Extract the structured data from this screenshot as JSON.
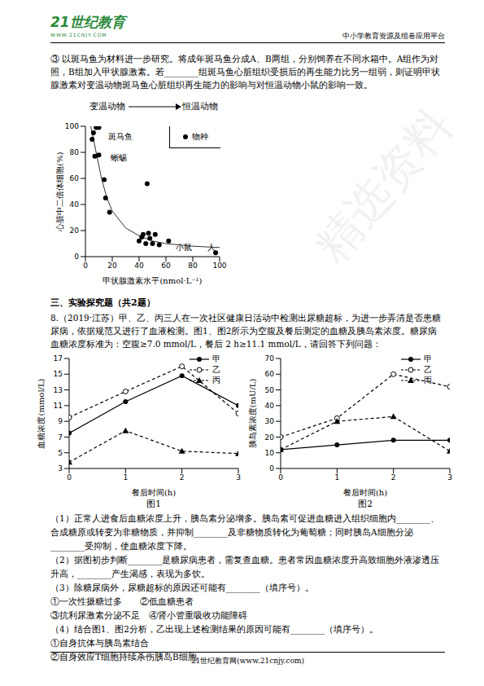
{
  "header": {
    "logo": "21世纪教育",
    "logo_url": "WWW.21CNJY.COM",
    "platform": "中小学教育资源及组卷应用平台"
  },
  "watermark": "精选资料",
  "intro": "③ 以斑马鱼为材料进一步研究。将成年斑马鱼分成A、B两组，分别饲养在不同水箱中。A组作为对照，B组加入甲状腺激素。若________组斑马鱼心脏组织受损后的再生能力比另一组弱，则证明甲状腺激素对变温动物斑马鱼心脏组织再生能力的影响与对恒温动物小鼠的影响一致。",
  "section": "三、实验探究题（共2题）",
  "stem": "8.（2019·江苏）甲、乙、丙三人在一次社区健康日活动中检测出尿糖超标，为进一步弄清是否患糖尿病，依据规范又进行了血液检测。图1、图2所示为空腹及餐后测定的血糖及胰岛素浓度。糖尿病血糖浓度标准为：空腹≥7.0 mmol/L，餐后 2 h≥11.1 mmol/L，请回答下列问题：",
  "parts": [
    "（1）正常人进食后血糖浓度上升，胰岛素分泌增多。胰岛素可促进血糖进入组织细胞内________、合成糖原或转变为非糖物质，并抑制________及非糖物质转化为葡萄糖；同时胰岛A细胞分泌________受抑制，使血糖浓度下降。",
    "（2）据图初步判断________是糖尿病患者，需复查血糖。患者常因血糖浓度升高致细胞外液渗透压升高，________产生渴感，表现为多饮。",
    "（3）除糖尿病外，尿糖超标的原因还可能有________（填序号）。",
    "①一次性摄糖过多　　②低血糖患者",
    "③抗利尿激素分泌不足　④肾小管重吸收功能障碍",
    "（4）结合图1、图2分析，乙出现上述检测结果的原因可能有________（填序号）。",
    "①自身抗体与胰岛素结合",
    "②自身效应T细胞持续杀伤胰岛B细胞"
  ],
  "footer": "21世纪教育网(www.21cnjy.com)",
  "chart_data": [
    {
      "type": "scatter",
      "x_label": "甲状腺激素水平(nmol·L⁻¹)",
      "y_label": "心脏中二倍体细胞(%)",
      "xlim": [
        0,
        100
      ],
      "xticks": [
        0,
        20,
        40,
        60,
        80,
        100
      ],
      "ylim": [
        0,
        100
      ],
      "yticks": [
        0,
        20,
        40,
        60,
        80,
        100
      ],
      "legend": "top-right",
      "top_labels": [
        "变温动物",
        "恒温动物"
      ],
      "series": [
        {
          "name": "物种",
          "color": "#000000",
          "marker": "circle",
          "x": [
            5,
            6,
            8,
            10,
            7,
            10,
            14,
            15,
            18,
            40,
            42,
            43,
            45,
            46,
            47,
            48,
            50,
            52,
            55,
            62,
            97
          ],
          "values": [
            90,
            95,
            99,
            99,
            77,
            78,
            59,
            45,
            34,
            12,
            15,
            17,
            10,
            56,
            18,
            14,
            10,
            17,
            9,
            12,
            3
          ]
        },
        {
          "type": "line",
          "color": "#333333",
          "marker": "none",
          "x": [
            4,
            8,
            12,
            16,
            20,
            30,
            40,
            50,
            60,
            70,
            80,
            100
          ],
          "values": [
            100,
            80,
            60,
            45,
            35,
            22,
            16,
            12,
            10,
            9,
            8,
            7
          ]
        }
      ],
      "annotations": [
        {
          "text": "斑马鱼",
          "x": 14,
          "y": 92
        },
        {
          "text": "蜥蜴",
          "x": 16,
          "y": 76
        },
        {
          "text": "小鼠",
          "x": 64,
          "y": 7
        },
        {
          "text": "人",
          "x": 88,
          "y": 7
        }
      ]
    },
    {
      "type": "line",
      "caption": "图1",
      "x_label": "餐后时间(h)",
      "y_label": "血糖浓度(mmol/L)",
      "x": [
        0,
        1,
        2,
        3
      ],
      "xlim": [
        0,
        3
      ],
      "xticks": [
        0,
        1,
        2,
        3
      ],
      "ylim": [
        3,
        17
      ],
      "yticks": [
        3,
        5,
        7,
        9,
        11,
        13,
        15,
        17
      ],
      "legend": "top-right",
      "series": [
        {
          "name": "甲",
          "color": "#000000",
          "marker": "circle",
          "line_style": "solid",
          "values": [
            7.5,
            11.5,
            14.8,
            11.0
          ]
        },
        {
          "name": "乙",
          "color": "#000000",
          "marker": "open_circle",
          "line_style": "dashed",
          "values": [
            9.5,
            12.8,
            16.0,
            10.0
          ]
        },
        {
          "name": "丙",
          "color": "#000000",
          "marker": "triangle",
          "line_style": "dashed",
          "values": [
            3.8,
            7.8,
            5.2,
            4.9
          ]
        }
      ]
    },
    {
      "type": "line",
      "caption": "图2",
      "x_label": "餐后时间(h)",
      "y_label": "胰岛素浓度(mU/L)",
      "x": [
        0,
        1,
        2,
        3
      ],
      "xlim": [
        0,
        3
      ],
      "xticks": [
        0,
        1,
        2,
        3
      ],
      "ylim": [
        0,
        70
      ],
      "yticks": [
        0,
        10,
        20,
        30,
        40,
        50,
        60,
        70
      ],
      "legend": "top-right",
      "series": [
        {
          "name": "甲",
          "color": "#000000",
          "marker": "circle",
          "line_style": "solid",
          "values": [
            12,
            15,
            18,
            18
          ]
        },
        {
          "name": "乙",
          "color": "#000000",
          "marker": "open_circle",
          "line_style": "dashed",
          "values": [
            20,
            32,
            60,
            52
          ]
        },
        {
          "name": "丙",
          "color": "#000000",
          "marker": "triangle",
          "line_style": "dashed",
          "values": [
            12,
            30,
            33,
            11
          ]
        }
      ]
    }
  ]
}
